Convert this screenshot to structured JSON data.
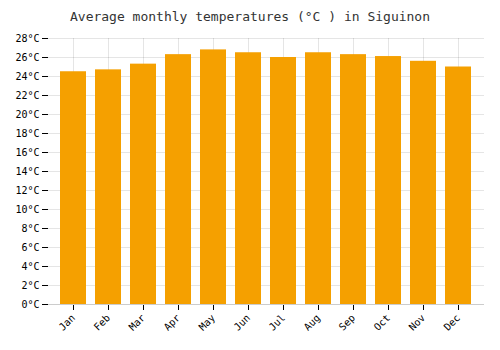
{
  "chart_data": {
    "type": "bar",
    "title": "Average monthly temperatures (°C ) in Siguinon",
    "categories": [
      "Jan",
      "Feb",
      "Mar",
      "Apr",
      "May",
      "Jun",
      "Jul",
      "Aug",
      "Sep",
      "Oct",
      "Nov",
      "Dec"
    ],
    "values": [
      24.5,
      24.7,
      25.3,
      26.3,
      26.8,
      26.5,
      26.0,
      26.5,
      26.3,
      26.1,
      25.6,
      25.0
    ],
    "color": "#F5A000",
    "ylim": [
      0,
      28
    ],
    "yticks": [
      {
        "value": 0,
        "label": "0°C"
      },
      {
        "value": 2,
        "label": "2°C"
      },
      {
        "value": 4,
        "label": "4°C"
      },
      {
        "value": 6,
        "label": "6°C"
      },
      {
        "value": 8,
        "label": "8°C"
      },
      {
        "value": 10,
        "label": "10°C"
      },
      {
        "value": 12,
        "label": "12°C"
      },
      {
        "value": 14,
        "label": "14°C"
      },
      {
        "value": 16,
        "label": "16°C"
      },
      {
        "value": 18,
        "label": "18°C"
      },
      {
        "value": 20,
        "label": "20°C"
      },
      {
        "value": 22,
        "label": "22°C"
      },
      {
        "value": 24,
        "label": "24°C"
      },
      {
        "value": 26,
        "label": "26°C"
      },
      {
        "value": 28,
        "label": "28°C"
      }
    ],
    "grid": true
  }
}
